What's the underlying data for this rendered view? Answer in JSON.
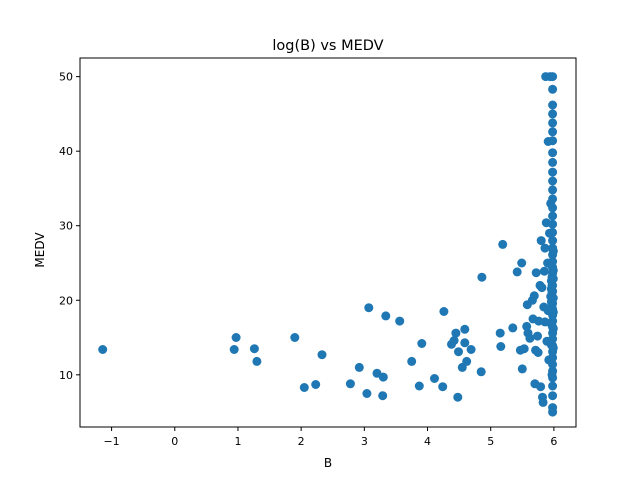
{
  "chart_data": {
    "type": "scatter",
    "title": "log(B) vs MEDV",
    "xlabel": "B",
    "ylabel": "MEDV",
    "xlim": [
      -1.5,
      6.35
    ],
    "ylim": [
      3,
      52.5
    ],
    "xticks": [
      -1,
      0,
      1,
      2,
      3,
      4,
      5,
      6
    ],
    "yticks": [
      10,
      20,
      30,
      40,
      50
    ],
    "xtick_labels": [
      "−1",
      "0",
      "1",
      "2",
      "3",
      "4",
      "5",
      "6"
    ],
    "ytick_labels": [
      "10",
      "20",
      "30",
      "40",
      "50"
    ],
    "grid": false,
    "legend": "none",
    "colors": {
      "marker": "#1f77b4",
      "axes": "#000000",
      "background": "#ffffff"
    },
    "points": [
      [
        -1.14,
        13.4
      ],
      [
        0.94,
        13.4
      ],
      [
        0.97,
        15.0
      ],
      [
        1.26,
        13.5
      ],
      [
        1.3,
        11.8
      ],
      [
        1.9,
        15.0
      ],
      [
        2.05,
        8.3
      ],
      [
        2.23,
        8.7
      ],
      [
        2.33,
        12.7
      ],
      [
        2.78,
        8.8
      ],
      [
        2.92,
        11.0
      ],
      [
        3.04,
        7.5
      ],
      [
        3.07,
        19.0
      ],
      [
        3.2,
        10.2
      ],
      [
        3.3,
        9.7
      ],
      [
        3.29,
        7.2
      ],
      [
        3.34,
        17.9
      ],
      [
        3.56,
        17.2
      ],
      [
        3.75,
        11.8
      ],
      [
        3.87,
        8.5
      ],
      [
        3.91,
        14.2
      ],
      [
        4.11,
        9.5
      ],
      [
        4.24,
        8.4
      ],
      [
        4.26,
        18.5
      ],
      [
        4.38,
        14.1
      ],
      [
        4.42,
        14.6
      ],
      [
        4.45,
        15.6
      ],
      [
        4.48,
        7.0
      ],
      [
        4.49,
        13.1
      ],
      [
        4.55,
        11.0
      ],
      [
        4.59,
        16.1
      ],
      [
        4.59,
        14.3
      ],
      [
        4.62,
        11.8
      ],
      [
        4.69,
        13.4
      ],
      [
        4.85,
        10.4
      ],
      [
        4.86,
        23.1
      ],
      [
        5.15,
        15.6
      ],
      [
        5.16,
        13.8
      ],
      [
        5.19,
        27.5
      ],
      [
        5.35,
        16.3
      ],
      [
        5.42,
        23.8
      ],
      [
        5.47,
        13.3
      ],
      [
        5.49,
        25.0
      ],
      [
        5.5,
        10.8
      ],
      [
        5.53,
        13.5
      ],
      [
        5.57,
        16.5
      ],
      [
        5.58,
        19.4
      ],
      [
        5.59,
        15.6
      ],
      [
        5.62,
        14.9
      ],
      [
        5.66,
        20.0
      ],
      [
        5.67,
        17.5
      ],
      [
        5.69,
        20.6
      ],
      [
        5.7,
        8.8
      ],
      [
        5.71,
        13.3
      ],
      [
        5.72,
        23.7
      ],
      [
        5.74,
        15.2
      ],
      [
        5.75,
        13.0
      ],
      [
        5.76,
        17.2
      ],
      [
        5.78,
        22.0
      ],
      [
        5.79,
        8.4
      ],
      [
        5.8,
        28.0
      ],
      [
        5.81,
        21.7
      ],
      [
        5.82,
        7.0
      ],
      [
        5.83,
        6.3
      ],
      [
        5.84,
        19.1
      ],
      [
        5.85,
        23.9
      ],
      [
        5.86,
        17.1
      ],
      [
        5.86,
        27.0
      ],
      [
        5.87,
        50.0
      ],
      [
        5.88,
        30.4
      ],
      [
        5.89,
        14.5
      ],
      [
        5.9,
        25.0
      ],
      [
        5.91,
        18.6
      ],
      [
        5.91,
        41.3
      ],
      [
        5.92,
        12.0
      ],
      [
        5.93,
        29.0
      ],
      [
        5.94,
        50.0
      ],
      [
        5.95,
        33.0
      ],
      [
        5.95,
        20.5
      ],
      [
        5.96,
        16.8
      ],
      [
        5.96,
        22.6
      ],
      [
        5.97,
        10.0
      ],
      [
        5.98,
        5.0
      ],
      [
        5.98,
        5.6
      ],
      [
        5.98,
        7.2
      ],
      [
        5.98,
        8.5
      ],
      [
        5.98,
        9.6
      ],
      [
        5.98,
        10.5
      ],
      [
        5.98,
        11.4
      ],
      [
        5.98,
        12.3
      ],
      [
        5.98,
        13.1
      ],
      [
        5.98,
        13.9
      ],
      [
        5.98,
        14.8
      ],
      [
        5.98,
        15.6
      ],
      [
        5.98,
        16.4
      ],
      [
        5.98,
        17.2
      ],
      [
        5.98,
        18.0
      ],
      [
        5.98,
        18.8
      ],
      [
        5.98,
        19.6
      ],
      [
        5.98,
        20.4
      ],
      [
        5.98,
        21.2
      ],
      [
        5.98,
        22.0
      ],
      [
        5.98,
        22.8
      ],
      [
        5.98,
        23.6
      ],
      [
        5.98,
        24.4
      ],
      [
        5.98,
        25.2
      ],
      [
        5.98,
        26.1
      ],
      [
        5.98,
        27.0
      ],
      [
        5.98,
        28.0
      ],
      [
        5.98,
        29.1
      ],
      [
        5.98,
        30.2
      ],
      [
        5.98,
        31.3
      ],
      [
        5.98,
        32.4
      ],
      [
        5.98,
        33.6
      ],
      [
        5.98,
        34.8
      ],
      [
        5.98,
        36.0
      ],
      [
        5.98,
        37.2
      ],
      [
        5.98,
        38.5
      ],
      [
        5.98,
        39.8
      ],
      [
        5.98,
        41.4
      ],
      [
        5.98,
        42.6
      ],
      [
        5.98,
        43.8
      ],
      [
        5.98,
        45.0
      ],
      [
        5.98,
        46.2
      ],
      [
        5.98,
        48.3
      ],
      [
        5.98,
        50.0
      ],
      [
        5.97,
        22.0
      ],
      [
        5.97,
        23.1
      ],
      [
        5.97,
        21.0
      ],
      [
        5.97,
        24.6
      ],
      [
        5.97,
        19.3
      ],
      [
        5.99,
        20.3
      ],
      [
        5.99,
        22.9
      ],
      [
        5.99,
        18.4
      ],
      [
        5.99,
        24.0
      ],
      [
        5.99,
        16.2
      ],
      [
        5.96,
        19.8
      ],
      [
        5.96,
        21.5
      ],
      [
        5.96,
        14.0
      ],
      [
        5.99,
        26.6
      ],
      [
        5.99,
        13.6
      ]
    ]
  }
}
